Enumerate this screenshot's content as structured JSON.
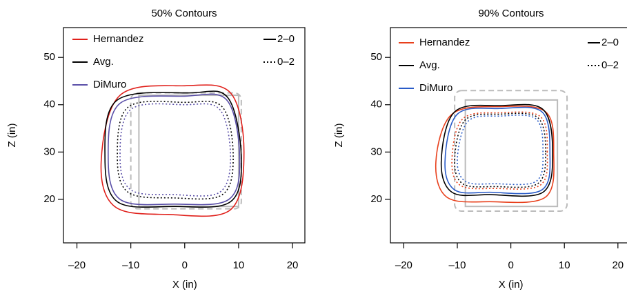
{
  "chart_data": [
    {
      "type": "contour",
      "title": "50% Contours",
      "x_label": "X (in)",
      "y_label": "Z (in)",
      "xlim": [
        -22.5,
        22.3
      ],
      "ylim": [
        10.8,
        56.3
      ],
      "xticks": [
        {
          "value": -20,
          "label": "–20"
        },
        {
          "value": -10,
          "label": "–10"
        },
        0,
        10,
        20
      ],
      "yticks": [
        20,
        30,
        40,
        50
      ],
      "players": [
        {
          "name": "Hernandez",
          "color": "#e0201b"
        },
        {
          "name": "Avg.",
          "color": "#000000"
        },
        {
          "name": "DiMuro",
          "color": "#5a4fa8"
        }
      ],
      "counts": [
        {
          "name": "2–0",
          "dash": "solid"
        },
        {
          "name": "0–2",
          "dash": "dotted"
        }
      ],
      "zones": [
        {
          "xrange": [
            -10,
            10.5
          ],
          "yrange": [
            18,
            42.5
          ],
          "dash": "dashed",
          "color": "#bbbbbb"
        },
        {
          "xrange": [
            -8.5,
            10
          ],
          "yrange": [
            18.5,
            42
          ],
          "dash": "solid",
          "color": "#bbbbbb"
        }
      ],
      "contours": [
        {
          "player": 0,
          "count": 0,
          "x": [
            11,
            8.5,
            0,
            -12,
            -15.5,
            -13,
            -3,
            8.5
          ],
          "y": [
            30,
            42.5,
            44,
            42,
            28,
            18.5,
            16.8,
            17.8
          ]
        },
        {
          "player": 1,
          "count": 0,
          "x": [
            10.5,
            8,
            1,
            -12.5,
            -14.8,
            -12.5,
            -2,
            8.5
          ],
          "y": [
            29,
            41.5,
            42.5,
            41,
            29,
            19.5,
            18.5,
            19.5
          ]
        },
        {
          "player": 2,
          "count": 0,
          "x": [
            10.2,
            7.8,
            0,
            -12,
            -14.2,
            -12,
            -2,
            8.2
          ],
          "y": [
            29,
            41,
            41.8,
            40.3,
            29,
            20,
            19,
            20
          ]
        },
        {
          "player": 1,
          "count": 1,
          "x": [
            9,
            7,
            0,
            -10.5,
            -12.5,
            -10.5,
            -2,
            7
          ],
          "y": [
            29,
            39.5,
            40.5,
            39.5,
            29,
            21.5,
            20.3,
            21
          ]
        },
        {
          "player": 2,
          "count": 1,
          "x": [
            8.5,
            6.5,
            0,
            -10,
            -12,
            -10,
            -2,
            6.5
          ],
          "y": [
            29,
            39,
            40,
            39,
            29,
            22,
            21,
            21.5
          ]
        }
      ]
    },
    {
      "type": "contour",
      "title": "90% Contours",
      "x_label": "X (in)",
      "y_label": "Z (in)",
      "xlim": [
        -22.5,
        22.6
      ],
      "ylim": [
        10.8,
        56.3
      ],
      "xticks": [
        {
          "value": -20,
          "label": "–20"
        },
        {
          "value": -10,
          "label": "–10"
        },
        0,
        10,
        20
      ],
      "yticks": [
        20,
        30,
        40,
        50
      ],
      "players": [
        {
          "name": "Hernandez",
          "color": "#e8401c"
        },
        {
          "name": "Avg.",
          "color": "#000000"
        },
        {
          "name": "DiMuro",
          "color": "#2a5cc8"
        }
      ],
      "counts": [
        {
          "name": "2–0",
          "dash": "solid"
        },
        {
          "name": "0–2",
          "dash": "dotted"
        }
      ],
      "zones": [
        {
          "xrange": [
            -10.5,
            10.5
          ],
          "yrange": [
            17.5,
            43
          ],
          "dash": "dashed",
          "color": "#bbbbbb"
        },
        {
          "xrange": [
            -8.5,
            8.7
          ],
          "yrange": [
            18.5,
            41
          ],
          "dash": "solid",
          "color": "#bbbbbb"
        }
      ],
      "contours": [
        {
          "player": 0,
          "count": 0,
          "x": [
            8,
            6.5,
            -2,
            -11,
            -14,
            -12,
            -4,
            6.5
          ],
          "y": [
            30,
            38.5,
            39.6,
            38,
            28,
            20.5,
            19.5,
            20.5
          ]
        },
        {
          "player": 1,
          "count": 0,
          "x": [
            7.8,
            6,
            -2,
            -10.5,
            -13,
            -11,
            -4,
            6
          ],
          "y": [
            30,
            39,
            39.8,
            38.5,
            28,
            21.5,
            21,
            21.5
          ]
        },
        {
          "player": 2,
          "count": 0,
          "x": [
            7.3,
            5.8,
            -2,
            -10,
            -12.3,
            -10.5,
            -4,
            5.8
          ],
          "y": [
            30,
            38.5,
            39.2,
            38,
            28,
            22,
            21.5,
            22
          ]
        },
        {
          "player": 0,
          "count": 1,
          "x": [
            6.8,
            5.5,
            -2,
            -9,
            -11,
            -9.5,
            -3,
            5.5
          ],
          "y": [
            30,
            37.5,
            38.3,
            37,
            28.5,
            23,
            22.3,
            23
          ]
        },
        {
          "player": 1,
          "count": 1,
          "x": [
            6.5,
            5,
            -2,
            -8.5,
            -10.5,
            -9,
            -3,
            5
          ],
          "y": [
            30,
            37.3,
            38,
            36.8,
            28.5,
            23.3,
            22.7,
            23.3
          ]
        },
        {
          "player": 2,
          "count": 1,
          "x": [
            6,
            4.7,
            -2,
            -8,
            -10,
            -8.5,
            -3,
            4.7
          ],
          "y": [
            30,
            37,
            37.6,
            36.5,
            28.5,
            23.8,
            23.3,
            23.8
          ]
        }
      ]
    }
  ]
}
